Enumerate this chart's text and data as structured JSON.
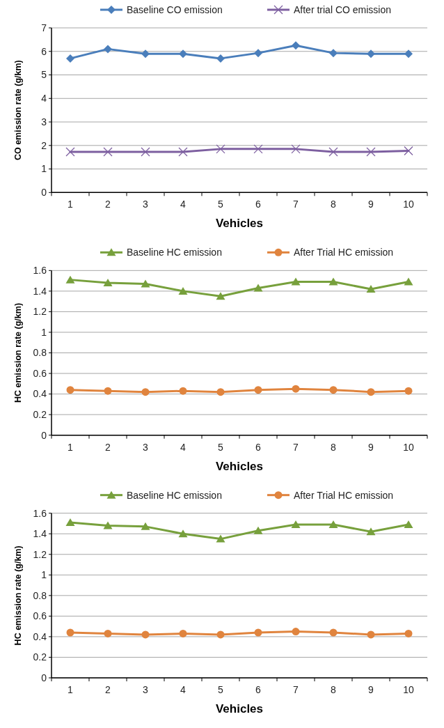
{
  "chart_data": [
    {
      "type": "line",
      "xlabel": "Vehicles",
      "ylabel": "CO emission rate (g/km)",
      "categories": [
        "1",
        "2",
        "3",
        "4",
        "5",
        "6",
        "7",
        "8",
        "9",
        "10"
      ],
      "ylim": [
        0,
        7
      ],
      "yticks": [
        0,
        1,
        2,
        3,
        4,
        5,
        6,
        7
      ],
      "grid": "y",
      "legend": "top",
      "series": [
        {
          "name": "Baseline CO emission",
          "color": "#4a7ebb",
          "marker": "diamond",
          "values": [
            5.7,
            6.1,
            5.9,
            5.9,
            5.7,
            5.93,
            6.25,
            5.93,
            5.9,
            5.9
          ]
        },
        {
          "name": "After trial CO emission",
          "color": "#7d5fa0",
          "marker": "cross",
          "values": [
            1.73,
            1.73,
            1.73,
            1.73,
            1.85,
            1.85,
            1.85,
            1.73,
            1.73,
            1.77
          ]
        }
      ]
    },
    {
      "type": "line",
      "xlabel": "Vehicles",
      "ylabel": "HC emission  rate (g/km)",
      "categories": [
        "1",
        "2",
        "3",
        "4",
        "5",
        "6",
        "7",
        "8",
        "9",
        "10"
      ],
      "ylim": [
        0,
        1.6
      ],
      "yticks": [
        0,
        {
          "value": 0.2,
          "label": "0.2"
        },
        {
          "value": 0.4,
          "label": "0.4"
        },
        {
          "value": 0.6,
          "label": "0.6"
        },
        {
          "value": 0.8,
          "label": "0.8"
        },
        1,
        {
          "value": 1.2,
          "label": "1.2"
        },
        {
          "value": 1.4,
          "label": "1.4"
        },
        {
          "value": 1.6,
          "label": "1.6"
        }
      ],
      "grid": "y",
      "legend": "top",
      "series": [
        {
          "name": "Baseline HC emission",
          "color": "#77a03c",
          "marker": "triangle",
          "values": [
            1.51,
            1.48,
            1.47,
            1.4,
            1.35,
            1.43,
            1.49,
            1.49,
            1.42,
            1.49
          ]
        },
        {
          "name": "After Trial HC emission",
          "color": "#e0843e",
          "marker": "circle",
          "values": [
            0.44,
            0.43,
            0.42,
            0.43,
            0.42,
            0.44,
            0.45,
            0.44,
            0.42,
            0.43
          ]
        }
      ]
    },
    {
      "type": "line",
      "xlabel": "Vehicles",
      "ylabel": "HC emission rate (g/km)",
      "categories": [
        "1",
        "2",
        "3",
        "4",
        "5",
        "6",
        "7",
        "8",
        "9",
        "10"
      ],
      "ylim": [
        0,
        1.6
      ],
      "yticks": [
        0,
        {
          "value": 0.2,
          "label": "0.2"
        },
        {
          "value": 0.4,
          "label": "0.4"
        },
        {
          "value": 0.6,
          "label": "0.6"
        },
        {
          "value": 0.8,
          "label": "0.8"
        },
        1,
        {
          "value": 1.2,
          "label": "1.2"
        },
        {
          "value": 1.4,
          "label": "1.4"
        },
        {
          "value": 1.6,
          "label": "1.6"
        }
      ],
      "grid": "y",
      "legend": "top",
      "series": [
        {
          "name": "Baseline HC emission",
          "color": "#77a03c",
          "marker": "triangle",
          "values": [
            1.51,
            1.48,
            1.47,
            1.4,
            1.35,
            1.43,
            1.49,
            1.49,
            1.42,
            1.49
          ]
        },
        {
          "name": "After Trial HC emission",
          "color": "#e0843e",
          "marker": "circle",
          "values": [
            0.44,
            0.43,
            0.42,
            0.43,
            0.42,
            0.44,
            0.45,
            0.44,
            0.42,
            0.43
          ]
        }
      ]
    }
  ]
}
